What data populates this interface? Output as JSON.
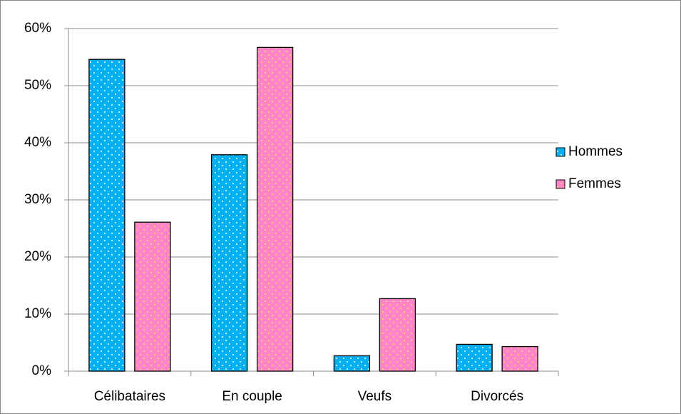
{
  "chart_data": {
    "type": "bar",
    "categories": [
      "Célibataires",
      "En couple",
      "Veufs",
      "Divorcés"
    ],
    "series": [
      {
        "name": "Hommes",
        "color": "#00b0f0",
        "dot_color": "#ffffff",
        "values": [
          54.6,
          37.9,
          2.7,
          4.7
        ]
      },
      {
        "name": "Femmes",
        "color": "#ff85c8",
        "dot_color": "#ffe066",
        "values": [
          26.1,
          56.7,
          12.7,
          4.3
        ]
      }
    ],
    "ylim": [
      0,
      60
    ],
    "yticks": [
      {
        "value": 0,
        "label": "0%"
      },
      {
        "value": 10,
        "label": "10%"
      },
      {
        "value": 20,
        "label": "20%"
      },
      {
        "value": 30,
        "label": "30%"
      },
      {
        "value": 40,
        "label": "40%"
      },
      {
        "value": 50,
        "label": "50%"
      },
      {
        "value": 60,
        "label": "60%"
      }
    ],
    "grid": true,
    "legend": "right"
  }
}
